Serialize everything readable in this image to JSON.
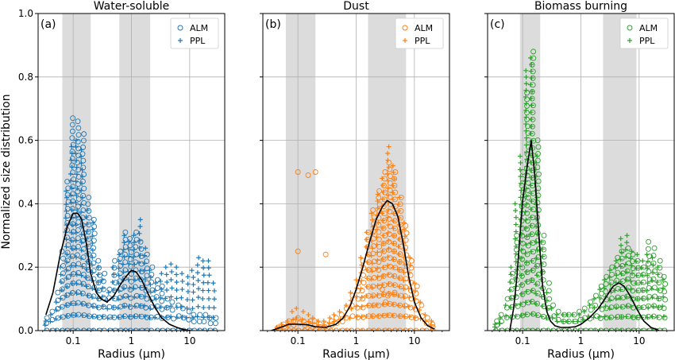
{
  "figure": {
    "ylabel": "Normalized size distribution"
  },
  "chart_data": [
    {
      "type": "scatter",
      "panel_label": "(a)",
      "title": "Water-soluble",
      "xlabel": "Radius (μm)",
      "ylabel": "Normalized size distribution",
      "xscale": "log",
      "xlim": [
        0.025,
        40
      ],
      "ylim": [
        0,
        1.0
      ],
      "xticks": [
        0.1,
        1,
        10
      ],
      "xtick_labels": [
        "0.1",
        "1",
        "10"
      ],
      "yticks": [
        0.0,
        0.2,
        0.4,
        0.6,
        0.8,
        1.0
      ],
      "ytick_labels": [
        "0.0",
        "0.2",
        "0.4",
        "0.6",
        "0.8",
        "1.0"
      ],
      "grid": true,
      "legend_position": "top-right",
      "color": "#1f77b4",
      "shaded_bands": [
        [
          0.065,
          0.2
        ],
        [
          0.62,
          2.1
        ]
      ],
      "x": [
        0.034,
        0.042,
        0.052,
        0.064,
        0.078,
        0.096,
        0.118,
        0.145,
        0.178,
        0.22,
        0.27,
        0.33,
        0.41,
        0.5,
        0.62,
        0.76,
        0.94,
        1.16,
        1.43,
        1.76,
        2.17,
        2.67,
        3.3,
        4.07,
        5.0,
        6.2,
        7.6,
        9.4,
        11.6,
        14.3,
        17.6,
        21.7,
        26.7
      ],
      "series": [
        {
          "name": "ALM",
          "marker": "circle",
          "y_max": [
            0.04,
            0.06,
            0.12,
            0.25,
            0.47,
            0.67,
            0.66,
            0.62,
            0.42,
            0.35,
            0.22,
            0.18,
            0.13,
            0.22,
            0.25,
            0.31,
            0.29,
            0.31,
            0.28,
            0.24,
            0.2,
            0.16,
            0.14,
            0.1,
            0.09,
            0.08,
            0.07,
            0.06,
            0.05,
            0.05,
            0.05,
            0.04,
            0.04
          ]
        },
        {
          "name": "PPL",
          "marker": "plus",
          "y_max": [
            0.03,
            0.05,
            0.09,
            0.2,
            0.44,
            0.58,
            0.6,
            0.57,
            0.38,
            0.34,
            0.2,
            0.16,
            0.12,
            0.2,
            0.24,
            0.3,
            0.28,
            0.3,
            0.35,
            0.26,
            0.19,
            0.15,
            0.18,
            0.2,
            0.21,
            0.2,
            0.18,
            0.17,
            0.19,
            0.23,
            0.22,
            0.22,
            0.15
          ]
        }
      ],
      "curve": {
        "x": [
          0.034,
          0.045,
          0.06,
          0.08,
          0.1,
          0.12,
          0.14,
          0.17,
          0.2,
          0.25,
          0.3,
          0.38,
          0.5,
          0.62,
          0.8,
          1.0,
          1.2,
          1.5,
          2.0,
          2.6,
          3.3,
          4.5,
          6.0,
          8.0,
          10.5
        ],
        "y": [
          0.05,
          0.12,
          0.24,
          0.33,
          0.37,
          0.37,
          0.35,
          0.27,
          0.18,
          0.12,
          0.1,
          0.09,
          0.11,
          0.14,
          0.17,
          0.19,
          0.185,
          0.16,
          0.11,
          0.07,
          0.04,
          0.02,
          0.01,
          0.003,
          0.0
        ]
      }
    },
    {
      "type": "scatter",
      "panel_label": "(b)",
      "title": "Dust",
      "xlabel": "Radius (μm)",
      "xscale": "log",
      "xlim": [
        0.025,
        40
      ],
      "ylim": [
        0,
        1.0
      ],
      "xticks": [
        0.1,
        1,
        10
      ],
      "xtick_labels": [
        "0.1",
        "1",
        "10"
      ],
      "yticks": [
        0.0,
        0.2,
        0.4,
        0.6,
        0.8,
        1.0
      ],
      "grid": true,
      "legend_position": "top-right",
      "color": "#ff7f0e",
      "shaded_bands": [
        [
          0.062,
          0.2
        ],
        [
          1.6,
          7.2
        ]
      ],
      "x": [
        0.045,
        0.055,
        0.068,
        0.083,
        0.1,
        0.125,
        0.155,
        0.19,
        0.235,
        0.29,
        0.36,
        0.44,
        0.55,
        0.68,
        0.83,
        1.03,
        1.27,
        1.57,
        1.94,
        2.4,
        2.96,
        3.65,
        4.5,
        5.6,
        6.9,
        8.5,
        10.5,
        13.0,
        16.0,
        19.7
      ],
      "series": [
        {
          "name": "ALM",
          "marker": "circle",
          "y_max": [
            0.01,
            0.02,
            0.03,
            0.03,
            0.04,
            0.03,
            0.03,
            0.03,
            0.02,
            0.02,
            0.03,
            0.04,
            0.05,
            0.07,
            0.11,
            0.15,
            0.22,
            0.31,
            0.38,
            0.44,
            0.5,
            0.53,
            0.5,
            0.42,
            0.33,
            0.22,
            0.14,
            0.08,
            0.04,
            0.02
          ]
        },
        {
          "name": "PPL",
          "marker": "plus",
          "y_max": [
            0.01,
            0.02,
            0.03,
            0.06,
            0.07,
            0.06,
            0.05,
            0.04,
            0.03,
            0.03,
            0.04,
            0.05,
            0.06,
            0.08,
            0.12,
            0.16,
            0.23,
            0.31,
            0.37,
            0.43,
            0.48,
            0.58,
            0.52,
            0.42,
            0.34,
            0.23,
            0.15,
            0.09,
            0.05,
            0.03
          ]
        }
      ],
      "outliers": {
        "x": [
          0.1,
          0.15,
          0.2,
          0.1,
          0.3,
          2.8,
          3.5,
          4.6,
          3.2
        ],
        "y": [
          0.5,
          0.49,
          0.5,
          0.25,
          0.24,
          0.13,
          0.11,
          0.12,
          0.09
        ]
      },
      "curve": {
        "x": [
          0.035,
          0.05,
          0.07,
          0.1,
          0.15,
          0.2,
          0.3,
          0.45,
          0.6,
          0.8,
          1.0,
          1.3,
          1.7,
          2.2,
          2.8,
          3.4,
          4.2,
          5.2,
          6.5,
          8.0,
          10.0,
          13.0,
          17.0,
          22.0
        ],
        "y": [
          0.0,
          0.01,
          0.02,
          0.02,
          0.018,
          0.012,
          0.01,
          0.02,
          0.04,
          0.08,
          0.13,
          0.2,
          0.28,
          0.35,
          0.39,
          0.41,
          0.4,
          0.36,
          0.27,
          0.17,
          0.09,
          0.04,
          0.015,
          0.005
        ]
      }
    },
    {
      "type": "scatter",
      "panel_label": "(c)",
      "title": "Biomass burning",
      "xlabel": "Radius (μm)",
      "xscale": "log",
      "xlim": [
        0.025,
        40
      ],
      "ylim": [
        0,
        1.0
      ],
      "xticks": [
        0.1,
        1,
        10
      ],
      "xtick_labels": [
        "0.1",
        "1",
        "10"
      ],
      "yticks": [
        0.0,
        0.2,
        0.4,
        0.6,
        0.8,
        1.0
      ],
      "grid": true,
      "legend_position": "top-right",
      "color": "#2ca02c",
      "shaded_bands": [
        [
          0.09,
          0.2
        ],
        [
          2.4,
          9.0
        ]
      ],
      "x": [
        0.034,
        0.042,
        0.052,
        0.064,
        0.078,
        0.096,
        0.118,
        0.145,
        0.178,
        0.22,
        0.27,
        0.33,
        0.41,
        0.5,
        0.62,
        0.76,
        0.94,
        1.16,
        1.43,
        1.76,
        2.17,
        2.67,
        3.3,
        4.07,
        5.0,
        6.2,
        7.6,
        9.4,
        11.6,
        14.3,
        17.6,
        21.7,
        26.7
      ],
      "series": [
        {
          "name": "ALM",
          "marker": "circle",
          "y_max": [
            0.03,
            0.05,
            0.1,
            0.18,
            0.3,
            0.5,
            0.75,
            0.88,
            0.6,
            0.3,
            0.15,
            0.08,
            0.06,
            0.05,
            0.05,
            0.05,
            0.06,
            0.07,
            0.09,
            0.11,
            0.14,
            0.17,
            0.2,
            0.23,
            0.25,
            0.26,
            0.24,
            0.22,
            0.2,
            0.28,
            0.26,
            0.22,
            0.17
          ]
        },
        {
          "name": "PPL",
          "marker": "plus",
          "y_max": [
            0.02,
            0.04,
            0.08,
            0.2,
            0.4,
            0.55,
            0.82,
            0.86,
            0.55,
            0.28,
            0.12,
            0.07,
            0.05,
            0.05,
            0.05,
            0.05,
            0.05,
            0.06,
            0.08,
            0.1,
            0.13,
            0.16,
            0.19,
            0.22,
            0.29,
            0.3,
            0.25,
            0.24,
            0.22,
            0.24,
            0.23,
            0.2,
            0.16
          ]
        }
      ],
      "curve": {
        "x": [
          0.06,
          0.07,
          0.08,
          0.09,
          0.1,
          0.12,
          0.14,
          0.16,
          0.19,
          0.22,
          0.26,
          0.3,
          0.36,
          0.45,
          0.6,
          0.8,
          1.0,
          1.4,
          2.0,
          2.8,
          3.6,
          4.5,
          5.5,
          7.0,
          9.0,
          12.0,
          16.0,
          22.0
        ],
        "y": [
          0.0,
          0.07,
          0.17,
          0.3,
          0.41,
          0.52,
          0.6,
          0.5,
          0.3,
          0.14,
          0.06,
          0.03,
          0.015,
          0.01,
          0.01,
          0.012,
          0.02,
          0.04,
          0.07,
          0.11,
          0.14,
          0.15,
          0.14,
          0.11,
          0.07,
          0.03,
          0.01,
          0.0
        ]
      }
    }
  ]
}
